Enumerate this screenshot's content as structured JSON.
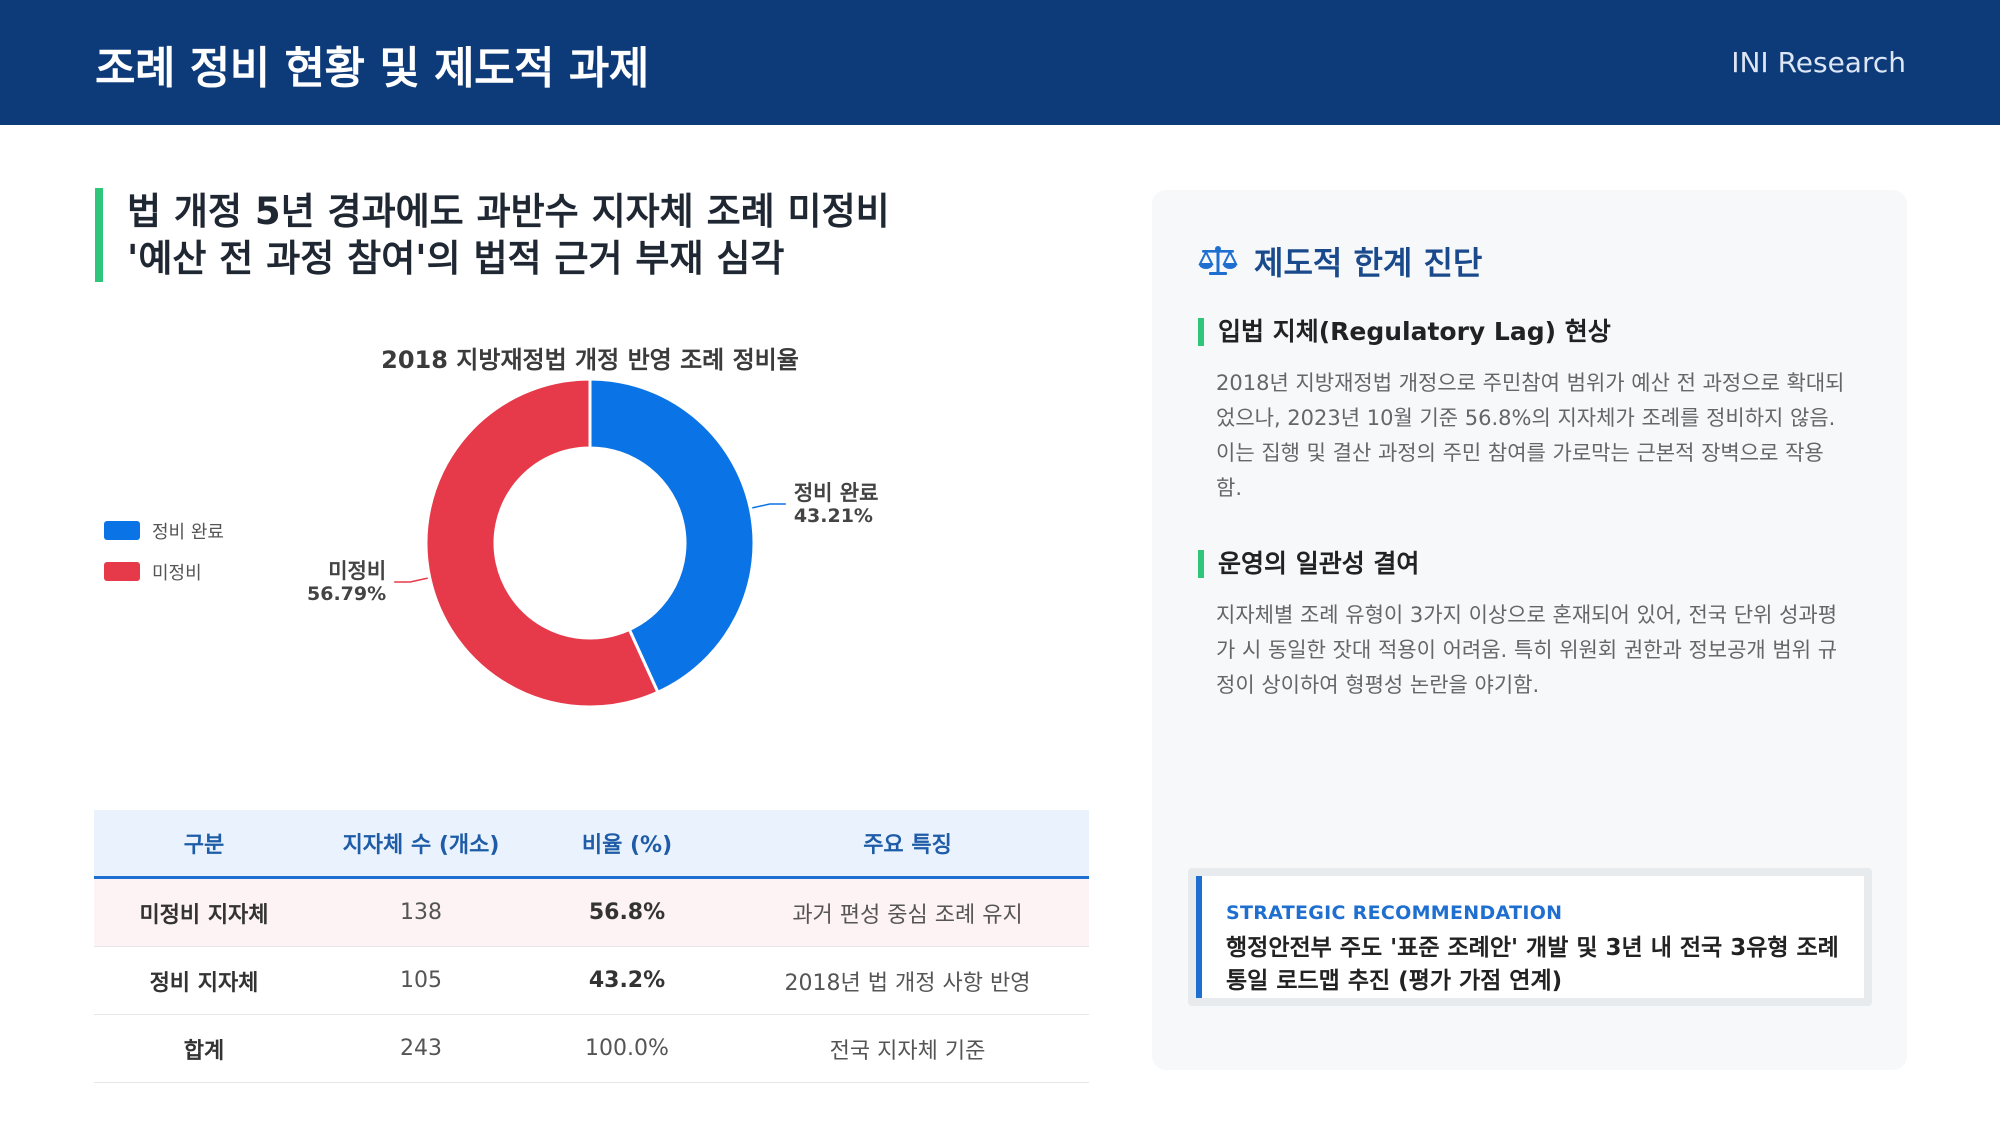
{
  "header": {
    "title": "조례 정비 현황 및 제도적 과제",
    "brand": "INI Research"
  },
  "headline": {
    "line1": "법 개정 5년 경과에도 과반수 지자체 조례 미정비",
    "line2": "'예산 전 과정 참여'의 법적 근거 부재 심각"
  },
  "colors": {
    "header_bg": "#0d3a78",
    "accent_green": "#2fc57a",
    "done": "#0a73e6",
    "not_done": "#e63a4a",
    "accent_blue": "#1f6fd1"
  },
  "chart_data": {
    "type": "pie",
    "title": "2018 지방재정법 개정 반영 조례 정비율",
    "labels": [
      "정비 완료",
      "미정비"
    ],
    "values": [
      43.21,
      56.79
    ],
    "value_labels": [
      "43.21%",
      "56.79%"
    ],
    "colors": [
      "#0a73e6",
      "#e63a4a"
    ],
    "legend": "left",
    "donut": true
  },
  "table": {
    "headers": [
      "구분",
      "지자체 수 (개소)",
      "비율 (%)",
      "주요 특징"
    ],
    "rows": [
      [
        "미정비 지자체",
        "138",
        "56.8%",
        "과거 편성 중심 조례 유지"
      ],
      [
        "정비 지자체",
        "105",
        "43.2%",
        "2018년 법 개정 사항 반영"
      ],
      [
        "합계",
        "243",
        "100.0%",
        "전국 지자체 기준"
      ]
    ]
  },
  "panel": {
    "title": "제도적 한계 진단",
    "title_icon": "balance-scale-icon",
    "sections": [
      {
        "heading": "입법 지체(Regulatory Lag) 현상",
        "body_lines": [
          "2018년 지방재정법 개정으로 주민참여 범위가 예산 전 과정으로 확대되",
          "었으나, 2023년 10월 기준 56.8%의 지자체가 조례를 정비하지 않음.",
          "이는 집행 및 결산 과정의 주민 참여를 가로막는 근본적 장벽으로 작용",
          "함."
        ]
      },
      {
        "heading": "운영의 일관성 결여",
        "body_lines": [
          "지자체별 조례 유형이 3가지 이상으로 혼재되어 있어, 전국 단위 성과평",
          "가 시 동일한 잣대 적용이 어려움. 특히 위원회 권한과 정보공개 범위 규",
          "정이 상이하여 형평성 논란을 야기함."
        ]
      }
    ],
    "recommendation": {
      "label": "STRATEGIC RECOMMENDATION",
      "line1": "행정안전부 주도 '표준 조례안' 개발 및 3년 내 전국 3유형 조례",
      "line2": "통일 로드맵 추진 (평가 가점 연계)"
    }
  }
}
